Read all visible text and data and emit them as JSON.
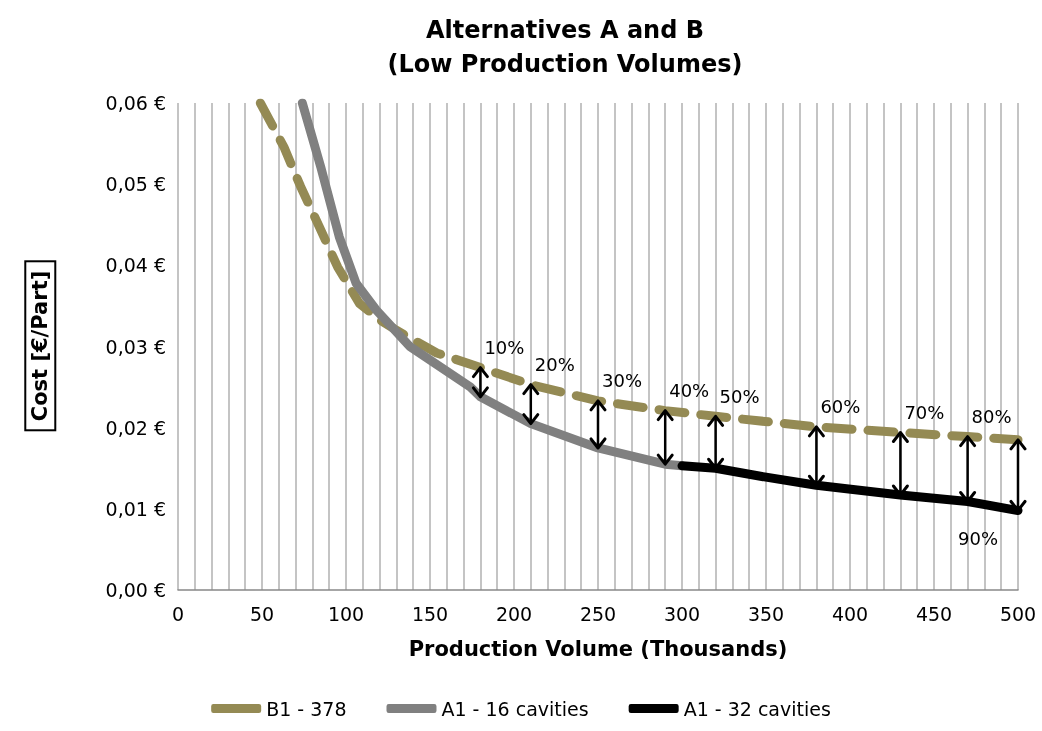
{
  "chart_data": {
    "type": "line",
    "title": "Alternatives A and B\n(Low Production Volumes)",
    "xlabel": "Production Volume (Thousands)",
    "ylabel": "Cost [€/Part]",
    "xlim": [
      0,
      500
    ],
    "ylim": [
      0,
      0.06
    ],
    "xticks": [
      0,
      {
        "value": 10,
        "label": null
      },
      {
        "value": 20,
        "label": null
      },
      {
        "value": 30,
        "label": null
      },
      {
        "value": 40,
        "label": null
      },
      50,
      {
        "value": 60,
        "label": null
      },
      {
        "value": 70,
        "label": null
      },
      {
        "value": 80,
        "label": null
      },
      {
        "value": 90,
        "label": null
      },
      100,
      {
        "value": 110,
        "label": null
      },
      {
        "value": 120,
        "label": null
      },
      {
        "value": 130,
        "label": null
      },
      {
        "value": 140,
        "label": null
      },
      150,
      {
        "value": 160,
        "label": null
      },
      {
        "value": 170,
        "label": null
      },
      {
        "value": 180,
        "label": null
      },
      {
        "value": 190,
        "label": null
      },
      200,
      {
        "value": 210,
        "label": null
      },
      {
        "value": 220,
        "label": null
      },
      {
        "value": 230,
        "label": null
      },
      {
        "value": 240,
        "label": null
      },
      250,
      {
        "value": 260,
        "label": null
      },
      {
        "value": 270,
        "label": null
      },
      {
        "value": 280,
        "label": null
      },
      {
        "value": 290,
        "label": null
      },
      300,
      {
        "value": 310,
        "label": null
      },
      {
        "value": 320,
        "label": null
      },
      {
        "value": 330,
        "label": null
      },
      {
        "value": 340,
        "label": null
      },
      350,
      {
        "value": 360,
        "label": null
      },
      {
        "value": 370,
        "label": null
      },
      {
        "value": 380,
        "label": null
      },
      {
        "value": 390,
        "label": null
      },
      400,
      {
        "value": 410,
        "label": null
      },
      {
        "value": 420,
        "label": null
      },
      {
        "value": 430,
        "label": null
      },
      {
        "value": 440,
        "label": null
      },
      450,
      {
        "value": 460,
        "label": null
      },
      {
        "value": 470,
        "label": null
      },
      {
        "value": 480,
        "label": null
      },
      {
        "value": 490,
        "label": null
      },
      500
    ],
    "yticks": [
      {
        "value": 0,
        "label": "0,00 €"
      },
      {
        "value": 0.01,
        "label": "0,01 €"
      },
      {
        "value": 0.02,
        "label": "0,02 €"
      },
      {
        "value": 0.03,
        "label": "0,03 €"
      },
      {
        "value": 0.04,
        "label": "0,04 €"
      },
      {
        "value": 0.05,
        "label": "0,05 €"
      },
      {
        "value": 0.06,
        "label": "0,06 €"
      }
    ],
    "grid": "x",
    "legend": "bottom",
    "series": [
      {
        "name": "B1 - 378",
        "color": "#948a54",
        "line_style": "dashed",
        "x": [
          49,
          63,
          73,
          84,
          95,
          108,
          120,
          130,
          154,
          180,
          210,
          250,
          290,
          320,
          380,
          430,
          470,
          500
        ],
        "values": [
          0.06,
          0.0546,
          0.0497,
          0.0448,
          0.0398,
          0.0353,
          0.0333,
          0.032,
          0.0292,
          0.0274,
          0.0253,
          0.0233,
          0.0221,
          0.0214,
          0.0201,
          0.0194,
          0.0189,
          0.0185
        ]
      },
      {
        "name": "A1 - 16 cavities",
        "color": "#808080",
        "line_style": "solid",
        "x": [
          74,
          85,
          96,
          106,
          118,
          138,
          174,
          180,
          210,
          250,
          290,
          300
        ],
        "values": [
          0.06,
          0.0521,
          0.0435,
          0.0378,
          0.0345,
          0.03,
          0.025,
          0.0238,
          0.0205,
          0.0175,
          0.0155,
          0.0153
        ]
      },
      {
        "name": "A1 - 32 cavities",
        "color": "#000000",
        "line_style": "solid",
        "x": [
          300,
          320,
          350,
          380,
          430,
          470,
          500
        ],
        "values": [
          0.0153,
          0.015,
          0.0139,
          0.0129,
          0.0117,
          0.0109,
          0.0098
        ]
      }
    ],
    "annotations": [
      {
        "text": "10%",
        "x": 180,
        "y": 0.0238
      },
      {
        "text": "20%",
        "x": 210,
        "y": 0.0205
      },
      {
        "text": "30%",
        "x": 250,
        "y": 0.0175
      },
      {
        "text": "40%",
        "x": 290,
        "y": 0.0155
      },
      {
        "text": "50%",
        "x": 320,
        "y": 0.015
      },
      {
        "text": "60%",
        "x": 380,
        "y": 0.0129
      },
      {
        "text": "70%",
        "x": 430,
        "y": 0.0117
      },
      {
        "text": "80%",
        "x": 470,
        "y": 0.0109
      },
      {
        "text": "90%",
        "x": 500,
        "y": 0.0098
      }
    ]
  }
}
